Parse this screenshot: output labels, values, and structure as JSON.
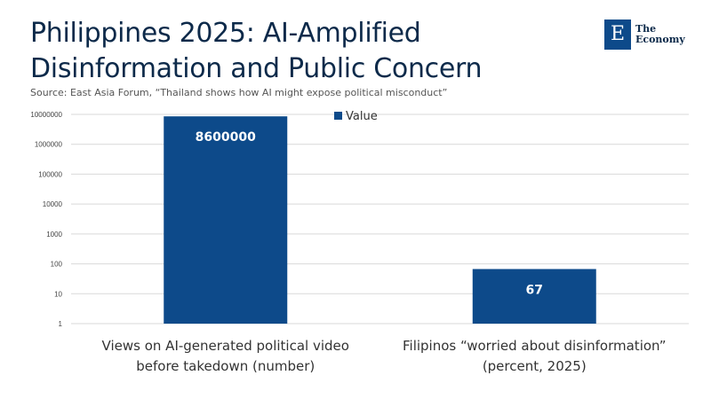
{
  "title": "Philippines 2025: AI-Amplified Disinformation and Public Concern",
  "source": "Source: East Asia Forum, “Thailand shows how AI might expose political misconduct”",
  "logo": {
    "letter": "E",
    "line1": "The",
    "line2": "Economy"
  },
  "colors": {
    "bar": "#0d4a8a",
    "grid": "#d9d9d9",
    "title": "#0d2a4a"
  },
  "chart_data": {
    "type": "bar",
    "yscale": "log",
    "ylim": [
      1,
      10000000
    ],
    "yticks": [
      "1",
      "10",
      "100",
      "1000",
      "10000",
      "100000",
      "1000000",
      "10000000"
    ],
    "categories": [
      [
        "Views on AI-generated political video",
        "before takedown (number)"
      ],
      [
        "Filipinos “worried about disinformation”",
        "(percent, 2025)"
      ]
    ],
    "series": [
      {
        "name": "Value",
        "values": [
          8600000,
          67
        ]
      }
    ],
    "data_labels": [
      "8600000",
      "67"
    ],
    "legend_position": "top",
    "grid": true
  }
}
